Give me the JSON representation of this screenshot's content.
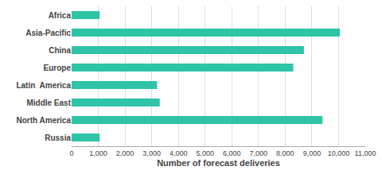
{
  "chart_data": {
    "type": "bar",
    "orientation": "horizontal",
    "categories": [
      "Africa",
      "Asia-Pacific",
      "China",
      "Europe",
      "Latin  America",
      "Middle East",
      "North America",
      "Russia"
    ],
    "values": [
      1050,
      10050,
      8700,
      8300,
      3200,
      3300,
      9400,
      1050
    ],
    "color": "#2ec4a5",
    "xlabel": "Number of forecast deliveries",
    "xlim": [
      0,
      11000
    ],
    "xticks": [
      0,
      {
        "value": 1000,
        "label": "1,000"
      },
      {
        "value": 2000,
        "label": "2,000"
      },
      {
        "value": 3000,
        "label": "3,000"
      },
      {
        "value": 4000,
        "label": "4,000"
      },
      {
        "value": 5000,
        "label": "5,000"
      },
      {
        "value": 6000,
        "label": "6,000"
      },
      {
        "value": 7000,
        "label": "7,000"
      },
      {
        "value": 8000,
        "label": "8,000"
      },
      {
        "value": 9000,
        "label": "9,000"
      },
      {
        "value": 10000,
        "label": "10,000"
      },
      {
        "value": 11000,
        "label": "11,000"
      }
    ],
    "grid": true
  }
}
